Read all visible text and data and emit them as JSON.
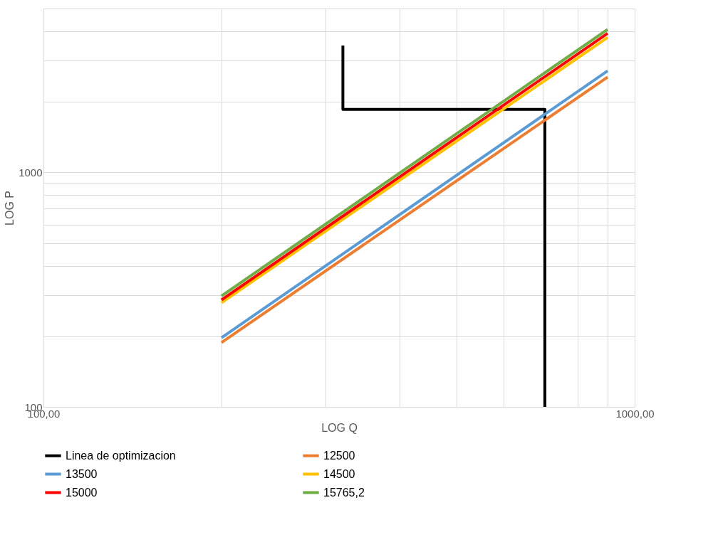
{
  "chart_data": {
    "type": "line",
    "xlabel": "LOG Q",
    "ylabel": "LOG P",
    "log": "xy",
    "grid": true,
    "legend": "bottom",
    "xlim": [
      100,
      1000
    ],
    "ylim": [
      100,
      5000
    ],
    "xticks": [
      {
        "value": 100,
        "label": "100,00"
      },
      {
        "value": 200,
        "label": null
      },
      {
        "value": 300,
        "label": null
      },
      {
        "value": 400,
        "label": null
      },
      {
        "value": 500,
        "label": null
      },
      {
        "value": 600,
        "label": null
      },
      {
        "value": 700,
        "label": null
      },
      {
        "value": 800,
        "label": null
      },
      {
        "value": 900,
        "label": null
      },
      {
        "value": 1000,
        "label": "1000,00"
      }
    ],
    "yticks": [
      100,
      {
        "value": 200,
        "label": null
      },
      {
        "value": 300,
        "label": null
      },
      {
        "value": 400,
        "label": null
      },
      {
        "value": 500,
        "label": null
      },
      {
        "value": 600,
        "label": null
      },
      {
        "value": 700,
        "label": null
      },
      {
        "value": 800,
        "label": null
      },
      {
        "value": 900,
        "label": null
      },
      1000,
      {
        "value": 2000,
        "label": null
      },
      {
        "value": 3000,
        "label": null
      },
      {
        "value": 4000,
        "label": null
      },
      {
        "value": 5000,
        "label": null
      }
    ],
    "series": [
      {
        "name": "Linea de optimizacion",
        "color": "#000000",
        "x": [
          321,
          321,
          705,
          705
        ],
        "values": [
          3480,
          1858,
          1858,
          100
        ]
      },
      {
        "name": "12500",
        "color": "#ed7d31",
        "x": [
          200,
          900
        ],
        "values": [
          188,
          2552
        ]
      },
      {
        "name": "13500",
        "color": "#5b9bd5",
        "x": [
          200,
          900
        ],
        "values": [
          197,
          2711
        ]
      },
      {
        "name": "14500",
        "color": "#ffc000",
        "x": [
          200,
          900
        ],
        "values": [
          278,
          3766
        ]
      },
      {
        "name": "15000",
        "color": "#ff0000",
        "x": [
          200,
          900
        ],
        "values": [
          286,
          3918
        ]
      },
      {
        "name": "15765,2",
        "color": "#70ad47",
        "x": [
          200,
          900
        ],
        "values": [
          297,
          4074
        ]
      }
    ]
  }
}
